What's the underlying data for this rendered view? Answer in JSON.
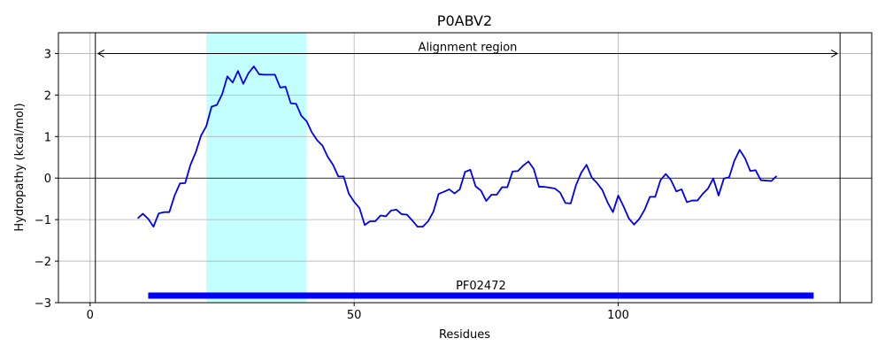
{
  "chart_data": {
    "type": "line",
    "title": "P0ABV2",
    "xlabel": "Residues",
    "ylabel": "Hydropathy (kcal/mol)",
    "xlim": [
      -6,
      148
    ],
    "ylim": [
      -3,
      3.5
    ],
    "xticks": [
      0,
      50,
      100
    ],
    "yticks": [
      -3,
      -2,
      -1,
      0,
      1,
      2,
      3
    ],
    "grid": true,
    "series": [
      {
        "color": "#0000ee",
        "x": [
          9,
          10,
          11,
          12,
          13,
          14,
          15,
          16,
          17,
          18,
          19,
          20,
          21,
          22,
          23,
          24,
          25,
          26,
          27,
          28,
          29,
          30,
          31,
          32,
          33,
          34,
          35,
          36,
          37,
          38,
          39,
          40,
          41,
          42,
          43,
          44,
          45,
          46,
          47,
          48,
          49,
          50,
          51,
          52,
          53,
          54,
          55,
          56,
          57,
          58,
          59,
          60,
          61,
          62,
          63,
          64,
          65,
          66,
          67,
          68,
          69,
          70,
          71,
          72,
          73,
          74,
          75,
          76,
          77,
          78,
          79,
          80,
          81,
          82,
          83,
          84,
          85,
          86,
          87,
          88,
          89,
          90,
          91,
          92,
          93,
          94,
          95,
          96,
          97,
          98,
          99,
          100,
          101,
          102,
          103,
          104,
          105,
          106,
          107,
          108,
          109,
          110,
          111,
          112,
          113,
          114,
          115,
          116,
          117,
          118,
          119,
          120,
          121,
          122,
          123,
          124,
          125,
          126,
          127,
          128,
          129,
          130
        ],
        "y": [
          -0.97,
          -0.86,
          -0.98,
          -1.17,
          -0.85,
          -0.82,
          -0.82,
          -0.42,
          -0.13,
          -0.12,
          0.32,
          0.62,
          1.02,
          1.25,
          1.72,
          1.76,
          2.02,
          2.45,
          2.3,
          2.58,
          2.27,
          2.53,
          2.69,
          2.5,
          2.49,
          2.49,
          2.49,
          2.18,
          2.2,
          1.8,
          1.79,
          1.5,
          1.37,
          1.1,
          0.91,
          0.78,
          0.51,
          0.32,
          0.04,
          0.04,
          -0.38,
          -0.57,
          -0.72,
          -1.13,
          -1.04,
          -1.04,
          -0.9,
          -0.92,
          -0.78,
          -0.76,
          -0.87,
          -0.88,
          -1.02,
          -1.17,
          -1.17,
          -1.04,
          -0.81,
          -0.38,
          -0.33,
          -0.27,
          -0.37,
          -0.27,
          0.15,
          0.2,
          -0.2,
          -0.3,
          -0.55,
          -0.4,
          -0.4,
          -0.22,
          -0.22,
          0.16,
          0.17,
          0.3,
          0.4,
          0.22,
          -0.21,
          -0.21,
          -0.23,
          -0.25,
          -0.35,
          -0.6,
          -0.61,
          -0.17,
          0.13,
          0.32,
          0.01,
          -0.12,
          -0.29,
          -0.59,
          -0.82,
          -0.42,
          -0.68,
          -0.97,
          -1.12,
          -0.98,
          -0.76,
          -0.45,
          -0.45,
          -0.05,
          0.1,
          -0.05,
          -0.32,
          -0.27,
          -0.58,
          -0.54,
          -0.54,
          -0.38,
          -0.25,
          -0.01,
          -0.42,
          -0.01,
          0.02,
          0.42,
          0.68,
          0.48,
          0.17,
          0.19,
          -0.05,
          -0.06,
          -0.07,
          0.05
        ]
      }
    ],
    "highlight_region": {
      "x_start": 22,
      "x_end": 41,
      "color": "#c4ffff"
    },
    "alignment_region": {
      "label": "Alignment region",
      "x_start": 1,
      "x_end": 142,
      "y": 3.0
    },
    "domain_bar": {
      "label": "PF02472",
      "x_start": 11,
      "x_end": 137,
      "y": -2.83,
      "color": "#0000ff"
    },
    "zero_line": true
  }
}
